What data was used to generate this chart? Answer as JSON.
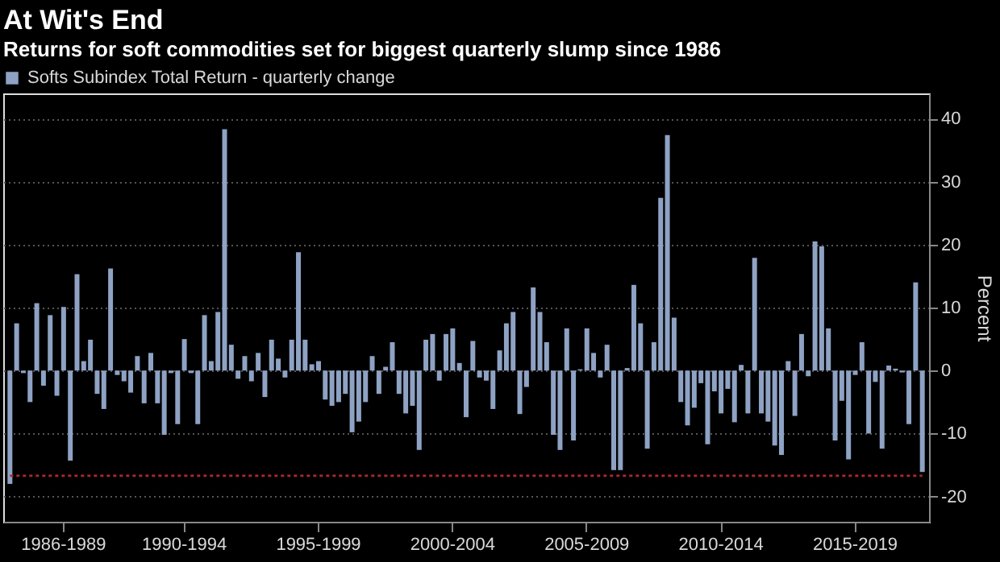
{
  "chart_data": {
    "type": "bar",
    "title": "At Wit's End",
    "subtitle": "Returns for soft commodities set for biggest quarterly slump since 1986",
    "ylabel": "Percent",
    "categories": [
      null,
      null,
      null,
      null,
      null,
      null,
      null,
      null,
      "1986-1989",
      null,
      null,
      null,
      null,
      null,
      null,
      null,
      null,
      null,
      null,
      null,
      null,
      null,
      null,
      null,
      null,
      null,
      "1990-1994",
      null,
      null,
      null,
      null,
      null,
      null,
      null,
      null,
      null,
      null,
      null,
      null,
      null,
      null,
      null,
      null,
      null,
      null,
      null,
      "1995-1999",
      null,
      null,
      null,
      null,
      null,
      null,
      null,
      null,
      null,
      null,
      null,
      null,
      null,
      null,
      null,
      null,
      null,
      null,
      null,
      "2000-2004",
      null,
      null,
      null,
      null,
      null,
      null,
      null,
      null,
      null,
      null,
      null,
      null,
      null,
      null,
      null,
      null,
      null,
      null,
      null,
      "2005-2009",
      null,
      null,
      null,
      null,
      null,
      null,
      null,
      null,
      null,
      null,
      null,
      null,
      null,
      null,
      null,
      null,
      null,
      null,
      null,
      "2010-2014",
      null,
      null,
      null,
      null,
      null,
      null,
      null,
      null,
      null,
      null,
      null,
      null,
      null,
      null,
      null,
      null,
      null,
      null,
      null,
      "2015-2019",
      null,
      null,
      null,
      null,
      null,
      null,
      null,
      null,
      null,
      null
    ],
    "series": [
      {
        "name": "Softs Subindex Total Return - quarterly change",
        "color": "#8ea2c4",
        "values": [
          -18.0,
          7.5,
          -0.4,
          -5.0,
          10.7,
          -2.4,
          8.8,
          -4.0,
          10.1,
          -14.3,
          15.3,
          1.5,
          4.9,
          -3.7,
          -6.1,
          16.2,
          -0.7,
          -1.7,
          -3.5,
          2.3,
          -5.2,
          2.8,
          -5.2,
          -10.2,
          -0.4,
          -8.5,
          5.0,
          -0.4,
          -8.5,
          8.8,
          1.5,
          9.3,
          38.3,
          4.1,
          -1.3,
          2.3,
          -1.7,
          2.8,
          -4.2,
          4.9,
          1.9,
          -1.1,
          4.9,
          18.8,
          4.9,
          1.0,
          1.5,
          -4.6,
          -5.6,
          -5.0,
          -3.7,
          -9.8,
          -8.1,
          -5.0,
          2.3,
          -3.7,
          0.6,
          4.5,
          -3.7,
          -6.8,
          -5.6,
          -12.6,
          4.9,
          5.8,
          -1.6,
          5.8,
          6.7,
          1.2,
          -7.4,
          4.7,
          -1.1,
          -1.6,
          -6.1,
          3.2,
          7.5,
          9.3,
          -6.9,
          -2.6,
          13.2,
          9.3,
          4.5,
          -10.2,
          -12.6,
          6.7,
          -11.1,
          0.2,
          6.7,
          2.8,
          -1.1,
          4.1,
          -15.8,
          -15.8,
          0.4,
          13.6,
          7.5,
          -12.4,
          4.5,
          27.4,
          37.4,
          8.4,
          -5.0,
          -8.7,
          -5.9,
          -2.0,
          -11.7,
          -3.3,
          -6.8,
          -2.9,
          -8.2,
          0.9,
          -6.8,
          17.9,
          -6.8,
          -8.1,
          -11.9,
          -13.4,
          1.5,
          -7.2,
          5.8,
          -0.9,
          20.5,
          19.7,
          6.7,
          -11.1,
          -4.8,
          -14.1,
          -0.7,
          4.5,
          -10.0,
          -1.8,
          -12.4,
          0.8,
          0.3,
          -0.3,
          -8.5,
          14.0,
          -16.1
        ]
      }
    ],
    "ylim": [
      -24,
      44
    ],
    "yticks": [
      -20,
      -10,
      0,
      10,
      20,
      30,
      40
    ],
    "ref_lines": [
      {
        "axis": "y",
        "value": -16.7,
        "color": "#b0282e",
        "line_style": "dotted"
      }
    ],
    "grid": "y",
    "legend": "top left"
  }
}
